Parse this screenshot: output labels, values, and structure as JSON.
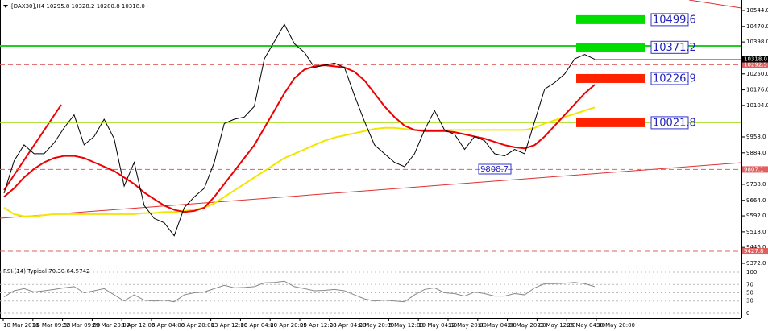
{
  "chart_data": {
    "type": "line",
    "title": "[DAX30],H4  10295.8 10328.2 10280.8 10318.0",
    "ylim": [
      9372,
      10544
    ],
    "yticks": [
      {
        "value": 10544,
        "label": "10544.0"
      },
      {
        "value": 10470,
        "label": "10470.0"
      },
      {
        "value": 10398,
        "label": "10398.0"
      },
      {
        "value": 10250,
        "label": "10250.0"
      },
      {
        "value": 10176,
        "label": "10176.0"
      },
      {
        "value": 10104,
        "label": "10104.0"
      },
      {
        "value": 9958,
        "label": "9958.0"
      },
      {
        "value": 9884,
        "label": "9884.0"
      },
      {
        "value": 9738,
        "label": "9738.0"
      },
      {
        "value": 9664,
        "label": "9664.0"
      },
      {
        "value": 9592,
        "label": "9592.0"
      },
      {
        "value": 9518,
        "label": "9518.0"
      },
      {
        "value": 9446,
        "label": "9446.0"
      },
      {
        "value": 9372,
        "label": "9372.0"
      }
    ],
    "xtick_labels": [
      "10 Mar 2016",
      "16 Mar 09:00",
      "22 Mar 09:00",
      "29 Mar 20:00",
      "1 Apr 12:00",
      "6 Apr 04:00",
      "8 Apr 20:00",
      "13 Apr 12:00",
      "18 Apr 04:00",
      "20 Apr 20:00",
      "25 Apr 12:00",
      "28 Apr 04:00",
      "2 May 20:00",
      "5 May 12:00",
      "10 May 04:00",
      "12 May 20:00",
      "18 May 04:00",
      "20 May 20:00",
      "23 May 12:00",
      "26 May 04:00",
      "30 May 20:00"
    ],
    "series": [
      {
        "name": "Close",
        "color": "#000000",
        "values": [
          9697,
          9846,
          9921,
          9880,
          9880,
          9930,
          10000,
          10060,
          9921,
          9960,
          10040,
          9950,
          9730,
          9840,
          9640,
          9580,
          9560,
          9500,
          9630,
          9680,
          9720,
          9840,
          10020,
          10040,
          10050,
          10100,
          10320,
          10400,
          10480,
          10390,
          10350,
          10280,
          10290,
          10300,
          10280,
          10150,
          10030,
          9921,
          9880,
          9840,
          9820,
          9880,
          9990,
          10080,
          9990,
          9970,
          9900,
          9960,
          9940,
          9880,
          9870,
          9900,
          9880,
          10030,
          10180,
          10210,
          10250,
          10320,
          10340,
          10318
        ]
      },
      {
        "name": "MA red",
        "color": "#ee0000",
        "values": [
          9680,
          9720,
          9770,
          9810,
          9840,
          9860,
          9870,
          9870,
          9860,
          9840,
          9820,
          9800,
          9770,
          9740,
          9700,
          9670,
          9640,
          9620,
          9610,
          9615,
          9630,
          9680,
          9740,
          9800,
          9860,
          9920,
          10000,
          10080,
          10160,
          10230,
          10270,
          10285,
          10290,
          10285,
          10280,
          10260,
          10220,
          10160,
          10100,
          10050,
          10010,
          9990,
          9985,
          9985,
          9985,
          9980,
          9970,
          9960,
          9950,
          9935,
          9920,
          9910,
          9905,
          9920,
          9960,
          10010,
          10060,
          10110,
          10160,
          10200
        ]
      },
      {
        "name": "MA yellow",
        "color": "#f2e600",
        "values": [
          9630,
          9600,
          9590,
          9590,
          9595,
          9600,
          9600,
          9600,
          9600,
          9600,
          9600,
          9600,
          9600,
          9600,
          9605,
          9605,
          9610,
          9610,
          9615,
          9620,
          9630,
          9650,
          9680,
          9710,
          9740,
          9770,
          9800,
          9830,
          9860,
          9880,
          9900,
          9920,
          9940,
          9955,
          9965,
          9975,
          9985,
          9995,
          10000,
          10000,
          9995,
          9990,
          9990,
          9990,
          9990,
          9990,
          9990,
          9990,
          9990,
          9990,
          9990,
          9990,
          9990,
          10000,
          10020,
          10035,
          10050,
          10065,
          10080,
          10095
        ]
      }
    ],
    "current_price": {
      "value": 10318,
      "label": "10318.0"
    },
    "levels": [
      {
        "value": 10380,
        "color": "#22cc22",
        "dashed": false
      },
      {
        "value": 10292.5,
        "color": "#e06060",
        "dashed": true,
        "label": "10292.5"
      },
      {
        "value": 10024,
        "color": "#aadd22",
        "dashed": false
      },
      {
        "value": 9807.1,
        "color": "#e06060",
        "dashed": true,
        "label": "9807.1"
      },
      {
        "value": 9427.8,
        "color": "#e06060",
        "dashed": true,
        "label": "9427.8"
      }
    ],
    "zones": [
      {
        "value": 10499.6,
        "color": "#00dd00"
      },
      {
        "value": 10371.2,
        "color": "#00dd00"
      },
      {
        "value": 10226.9,
        "color": "#ff2200"
      },
      {
        "value": 10021.8,
        "color": "#ff2200"
      }
    ],
    "annotation": {
      "value": 9808.7
    },
    "rsi": {
      "title": "RSI (14) Typical  70.30  64.5742",
      "ylim": [
        0,
        100
      ],
      "yticks": [
        100,
        70,
        50,
        30,
        0
      ],
      "color": "#888888",
      "values": [
        40,
        55,
        60,
        52,
        55,
        58,
        62,
        65,
        50,
        55,
        60,
        45,
        30,
        45,
        32,
        30,
        32,
        28,
        45,
        50,
        52,
        60,
        68,
        62,
        63,
        65,
        74,
        75,
        78,
        65,
        60,
        55,
        56,
        58,
        55,
        45,
        35,
        30,
        32,
        30,
        28,
        45,
        58,
        62,
        50,
        48,
        42,
        52,
        48,
        42,
        42,
        48,
        45,
        62,
        72,
        72,
        73,
        75,
        72,
        65
      ]
    }
  }
}
